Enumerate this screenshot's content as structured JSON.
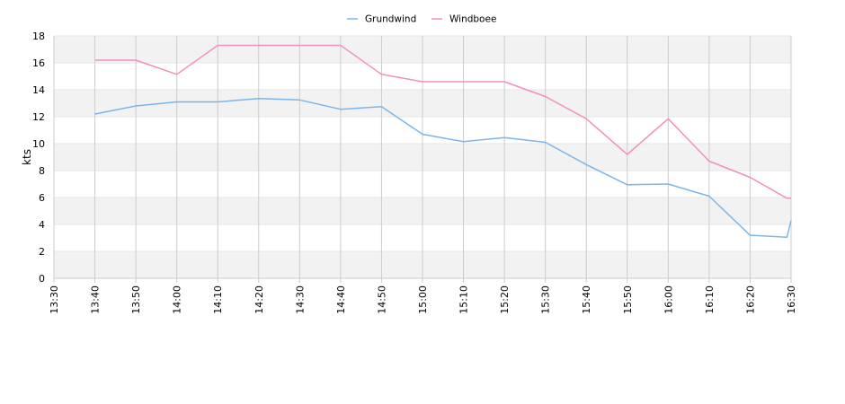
{
  "chart_data": {
    "type": "line",
    "title": "",
    "xlabel": "",
    "ylabel": "kts",
    "ylim": [
      0,
      18
    ],
    "yticks": [
      0,
      2,
      4,
      6,
      8,
      10,
      12,
      14,
      16,
      18
    ],
    "xlim": [
      "13:30",
      "16:30"
    ],
    "xticks": [
      "13:30",
      "13:40",
      "13:50",
      "14:00",
      "14:10",
      "14:20",
      "14:30",
      "14:40",
      "14:50",
      "15:00",
      "15:10",
      "15:20",
      "15:30",
      "15:40",
      "15:50",
      "16:00",
      "16:10",
      "16:20",
      "16:30"
    ],
    "grid": true,
    "legend_position": "top",
    "series": [
      {
        "name": "Grundwind",
        "color": "#7cb5ec",
        "points": [
          [
            "13:40",
            12.2
          ],
          [
            "13:50",
            12.8
          ],
          [
            "14:00",
            13.1
          ],
          [
            "14:10",
            13.1
          ],
          [
            "14:20",
            13.35
          ],
          [
            "14:30",
            13.25
          ],
          [
            "14:40",
            12.55
          ],
          [
            "14:50",
            12.75
          ],
          [
            "15:00",
            10.7
          ],
          [
            "15:10",
            10.15
          ],
          [
            "15:20",
            10.45
          ],
          [
            "15:30",
            10.1
          ],
          [
            "15:40",
            8.45
          ],
          [
            "15:50",
            6.95
          ],
          [
            "16:00",
            7.0
          ],
          [
            "16:10",
            6.1
          ],
          [
            "16:20",
            3.2
          ],
          [
            "16:29",
            3.05
          ],
          [
            "16:30",
            4.3
          ]
        ]
      },
      {
        "name": "Windboee",
        "color": "#f28fbf",
        "points": [
          [
            "13:40",
            16.2
          ],
          [
            "13:50",
            16.2
          ],
          [
            "14:00",
            15.15
          ],
          [
            "14:10",
            17.3
          ],
          [
            "14:20",
            17.3
          ],
          [
            "14:30",
            17.3
          ],
          [
            "14:40",
            17.3
          ],
          [
            "14:50",
            15.15
          ],
          [
            "15:00",
            14.6
          ],
          [
            "15:10",
            14.6
          ],
          [
            "15:20",
            14.6
          ],
          [
            "15:30",
            13.5
          ],
          [
            "15:40",
            11.85
          ],
          [
            "15:50",
            9.2
          ],
          [
            "16:00",
            11.85
          ],
          [
            "16:10",
            8.7
          ],
          [
            "16:20",
            7.5
          ],
          [
            "16:29",
            5.95
          ],
          [
            "16:30",
            5.95
          ]
        ]
      }
    ]
  }
}
